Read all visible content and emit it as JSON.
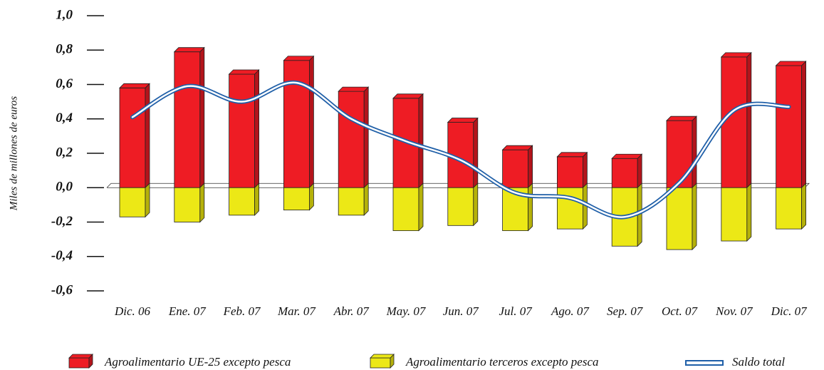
{
  "chart_data": {
    "type": "bar",
    "y_label": "Miles de millones de euros",
    "categories": [
      "Dic. 06",
      "Ene. 07",
      "Feb. 07",
      "Mar. 07",
      "Abr. 07",
      "May. 07",
      "Jun. 07",
      "Jul. 07",
      "Ago. 07",
      "Sep. 07",
      "Oct. 07",
      "Nov. 07",
      "Dic. 07"
    ],
    "series": [
      {
        "name": "Agroalimentario UE-25 excepto pesca",
        "color": "#ee1c24",
        "side_color": "#b3141b",
        "values": [
          0.58,
          0.79,
          0.66,
          0.74,
          0.56,
          0.52,
          0.38,
          0.22,
          0.18,
          0.17,
          0.39,
          0.76,
          0.71
        ]
      },
      {
        "name": "Agroalimentario terceros excepto pesca",
        "color": "#ece816",
        "side_color": "#b5b10a",
        "values": [
          -0.17,
          -0.2,
          -0.16,
          -0.13,
          -0.16,
          -0.25,
          -0.22,
          -0.25,
          -0.24,
          -0.34,
          -0.36,
          -0.31,
          -0.24
        ]
      },
      {
        "name": "Saldo total",
        "type": "line",
        "color": "#1f5fa8",
        "values": [
          0.41,
          0.59,
          0.5,
          0.61,
          0.4,
          0.27,
          0.16,
          -0.03,
          -0.06,
          -0.17,
          0.03,
          0.45,
          0.47
        ]
      }
    ],
    "ylim": [
      -0.6,
      1.0
    ],
    "yticks": [
      {
        "value": 1.0,
        "label": "1,0"
      },
      {
        "value": 0.8,
        "label": "0,8"
      },
      {
        "value": 0.6,
        "label": "0,6"
      },
      {
        "value": 0.4,
        "label": "0,4"
      },
      {
        "value": 0.2,
        "label": "0,2"
      },
      {
        "value": 0,
        "label": "0,0"
      },
      {
        "value": -0.2,
        "label": "-0,2"
      },
      {
        "value": -0.4,
        "label": "-0,4"
      },
      {
        "value": -0.6,
        "label": "-0,6"
      }
    ]
  }
}
